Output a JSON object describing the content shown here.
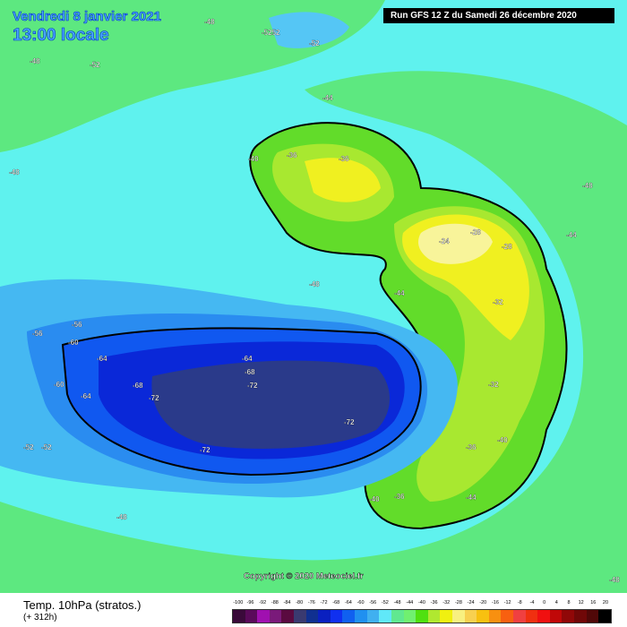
{
  "header": {
    "date": "Vendredi 8 janvier 2021",
    "time": "13:00 locale",
    "run": "Run GFS 12 Z du Samedi 26 décembre 2020"
  },
  "copyright": "Copyright © 2020 Meteociel.fr",
  "footer": {
    "parameter": "Temp. 10hPa (stratos.)",
    "forecast_hour": "(+ 312h)"
  },
  "legend": {
    "ticks": [
      "-100",
      "-96",
      "-92",
      "-88",
      "-84",
      "-80",
      "-76",
      "-72",
      "-68",
      "-64",
      "-60",
      "-56",
      "-52",
      "-48",
      "-44",
      "-40",
      "-36",
      "-32",
      "-28",
      "-24",
      "-20",
      "-16",
      "-12",
      "-8",
      "-4",
      "0",
      "4",
      "8",
      "12",
      "16",
      "20"
    ],
    "colors": [
      "#3a0a3a",
      "#5a0a5a",
      "#a010b0",
      "#7a1a7a",
      "#5a0a40",
      "#3a3a70",
      "#103090",
      "#0a20c0",
      "#1030f0",
      "#1060f0",
      "#2090f0",
      "#40b0f0",
      "#60e8f8",
      "#60e890",
      "#70f070",
      "#50e010",
      "#b0e830",
      "#f0f010",
      "#f8f080",
      "#f8d050",
      "#f8c010",
      "#f89010",
      "#f86010",
      "#f04040",
      "#f03010",
      "#f01010",
      "#c00808",
      "#900808",
      "#700808",
      "#500808",
      "#000000"
    ]
  },
  "contour_labels": [
    {
      "t": "-52",
      "lon": "Arctic north"
    },
    {
      "t": "-48",
      "lon": "west"
    },
    {
      "t": "-44",
      "lon": "north"
    },
    {
      "t": "-36",
      "lon": "Siberia"
    },
    {
      "t": "-40",
      "lon": "Siberia"
    },
    {
      "t": "-24",
      "lon": "Asia"
    },
    {
      "t": "-28",
      "lon": "Asia"
    },
    {
      "t": "-32",
      "lon": "Asia"
    },
    {
      "t": "-56",
      "lon": "America"
    },
    {
      "t": "-60",
      "lon": "America"
    },
    {
      "t": "-64",
      "lon": "America"
    },
    {
      "t": "-68",
      "lon": "Atlantic"
    },
    {
      "t": "-72",
      "lon": "Atlantic"
    },
    {
      "t": "-36",
      "lon": "Europe"
    },
    {
      "t": "-40",
      "lon": "Europe"
    },
    {
      "t": "-44",
      "lon": "Europe"
    },
    {
      "t": "-52",
      "lon": "Pacific"
    }
  ]
}
